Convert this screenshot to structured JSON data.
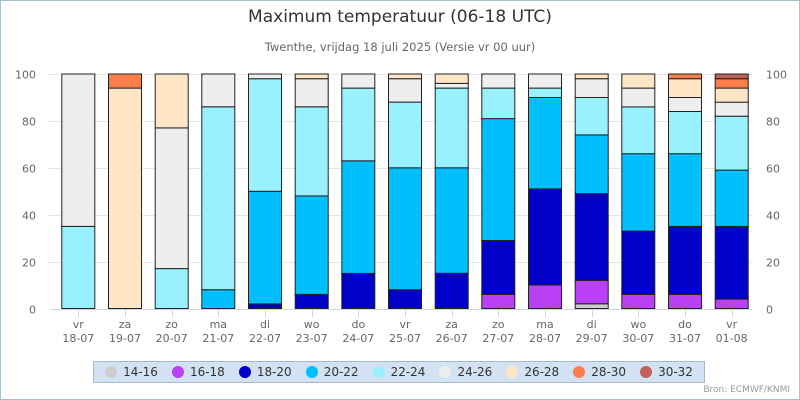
{
  "chart_data": {
    "type": "bar",
    "stacked": true,
    "title": "Maximum temperatuur (06-18 UTC)",
    "subtitle": "Twenthe, vrijdag 18 juli 2025 (Versie vr 00 uur)",
    "xlabel": "",
    "ylabel": "",
    "ylim": [
      0,
      100
    ],
    "yticks": [
      0,
      20,
      40,
      60,
      80,
      100
    ],
    "grid": true,
    "legend_position": "bottom",
    "categories": [
      {
        "day": "vr",
        "date": "18-07"
      },
      {
        "day": "za",
        "date": "19-07"
      },
      {
        "day": "zo",
        "date": "20-07"
      },
      {
        "day": "ma",
        "date": "21-07"
      },
      {
        "day": "di",
        "date": "22-07"
      },
      {
        "day": "wo",
        "date": "23-07"
      },
      {
        "day": "do",
        "date": "24-07"
      },
      {
        "day": "vr",
        "date": "25-07"
      },
      {
        "day": "za",
        "date": "26-07"
      },
      {
        "day": "zo",
        "date": "27-07"
      },
      {
        "day": "ma",
        "date": "28-07"
      },
      {
        "day": "di",
        "date": "29-07"
      },
      {
        "day": "wo",
        "date": "30-07"
      },
      {
        "day": "do",
        "date": "31-07"
      },
      {
        "day": "vr",
        "date": "01-08"
      }
    ],
    "series": [
      {
        "name": "14-16",
        "color": "#cccccc",
        "values": [
          0,
          0,
          0,
          0,
          0,
          0,
          0,
          0,
          0,
          0,
          0,
          2,
          0,
          0,
          0
        ]
      },
      {
        "name": "16-18",
        "color": "#b940f5",
        "values": [
          0,
          0,
          0,
          0,
          0,
          0,
          0,
          0,
          0,
          6,
          10,
          10,
          6,
          6,
          4
        ]
      },
      {
        "name": "18-20",
        "color": "#0000c8",
        "values": [
          0,
          0,
          0,
          0,
          2,
          6,
          15,
          8,
          15,
          23,
          41,
          37,
          27,
          29,
          31
        ]
      },
      {
        "name": "20-22",
        "color": "#00bfff",
        "values": [
          0,
          0,
          0,
          8,
          48,
          42,
          48,
          52,
          45,
          52,
          39,
          25,
          33,
          31,
          24
        ]
      },
      {
        "name": "22-24",
        "color": "#99f0ff",
        "values": [
          35,
          0,
          17,
          78,
          48,
          38,
          31,
          28,
          34,
          13,
          4,
          16,
          20,
          18,
          23
        ]
      },
      {
        "name": "24-26",
        "color": "#eeeeee",
        "values": [
          65,
          0,
          60,
          14,
          2,
          12,
          6,
          10,
          2,
          6,
          6,
          8,
          8,
          6,
          6
        ]
      },
      {
        "name": "26-28",
        "color": "#fde5c6",
        "values": [
          0,
          94,
          23,
          0,
          0,
          2,
          0,
          2,
          4,
          0,
          0,
          2,
          6,
          8,
          6
        ]
      },
      {
        "name": "28-30",
        "color": "#fb7d4a",
        "values": [
          0,
          6,
          0,
          0,
          0,
          0,
          0,
          0,
          0,
          0,
          0,
          0,
          0,
          2,
          4
        ]
      },
      {
        "name": "30-32",
        "color": "#c0605a",
        "values": [
          0,
          0,
          0,
          0,
          0,
          0,
          0,
          0,
          0,
          0,
          0,
          0,
          0,
          0,
          2
        ]
      }
    ]
  },
  "credits": "Bron: ECMWF/KNMI"
}
